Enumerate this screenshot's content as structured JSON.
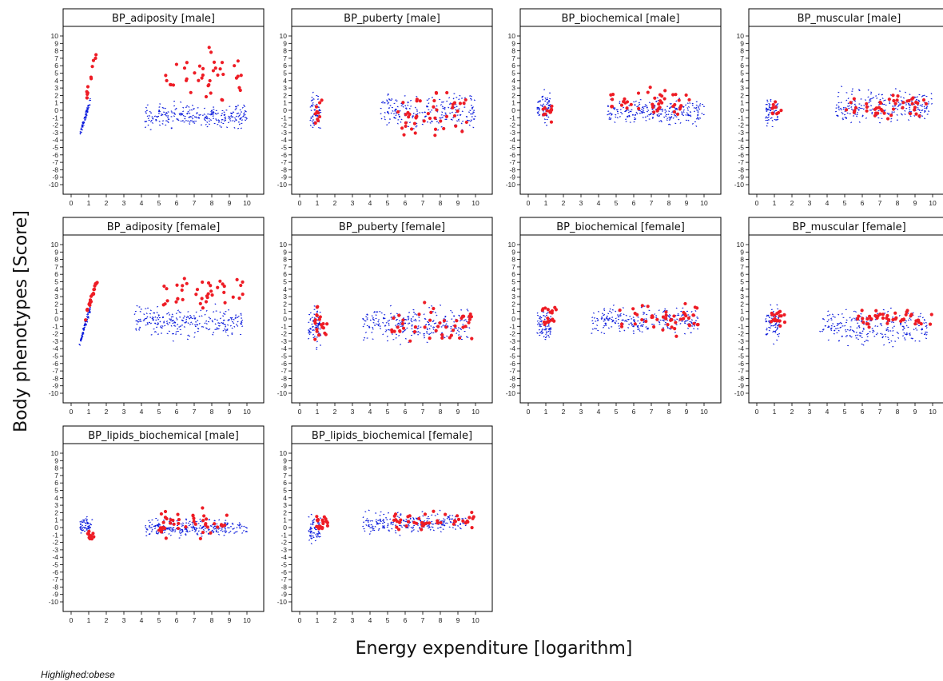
{
  "figure": {
    "ylabel": "Body phenotypes [Score]",
    "xlabel": "Energy expenditure [logarithm]",
    "footnote": "Highlighed:obese"
  },
  "colors": {
    "highlight": "#ee1c25",
    "base": "#0a1adc",
    "axis": "#000000"
  },
  "chart_data": [
    {
      "type": "scatter",
      "title": "BP_adiposity [male]",
      "xlim": [
        0,
        10
      ],
      "ylim": [
        -10,
        10
      ],
      "clusters": [
        {
          "group": "base",
          "x": [
            0.5,
            1.1
          ],
          "y": [
            -3.3,
            1.5
          ],
          "n": 80,
          "trend": "rising"
        },
        {
          "group": "base",
          "x": [
            4.2,
            10
          ],
          "y": [
            -3.0,
            1.5
          ],
          "n": 260
        },
        {
          "group": "highlight",
          "x": [
            0.85,
            1.4
          ],
          "y": [
            1.5,
            7.7
          ],
          "n": 12,
          "trend": "rising"
        },
        {
          "group": "highlight",
          "x": [
            5.3,
            9.8
          ],
          "y": [
            0,
            9.5
          ],
          "n": 40
        }
      ]
    },
    {
      "type": "scatter",
      "title": "BP_puberty [male]",
      "xlim": [
        0,
        10
      ],
      "ylim": [
        -10,
        10
      ],
      "clusters": [
        {
          "group": "base",
          "x": [
            0.6,
            1.2
          ],
          "y": [
            -3.7,
            3.3
          ],
          "n": 60
        },
        {
          "group": "base",
          "x": [
            4.6,
            10
          ],
          "y": [
            -3.5,
            3.0
          ],
          "n": 230
        },
        {
          "group": "highlight",
          "x": [
            0.8,
            1.3
          ],
          "y": [
            -3.2,
            2.4
          ],
          "n": 10
        },
        {
          "group": "highlight",
          "x": [
            5.5,
            9.5
          ],
          "y": [
            -5.0,
            3.5
          ],
          "n": 45
        }
      ]
    },
    {
      "type": "scatter",
      "title": "BP_biochemical [male]",
      "xlim": [
        0,
        10
      ],
      "ylim": [
        -10,
        10
      ],
      "clusters": [
        {
          "group": "base",
          "x": [
            0.5,
            1.3
          ],
          "y": [
            -2.3,
            3.2
          ],
          "n": 70
        },
        {
          "group": "base",
          "x": [
            4.5,
            10
          ],
          "y": [
            -2.5,
            2.3
          ],
          "n": 240
        },
        {
          "group": "highlight",
          "x": [
            0.8,
            1.4
          ],
          "y": [
            -2.0,
            1.8
          ],
          "n": 12
        },
        {
          "group": "highlight",
          "x": [
            4.6,
            9.5
          ],
          "y": [
            -1.5,
            3.6
          ],
          "n": 45
        }
      ]
    },
    {
      "type": "scatter",
      "title": "BP_muscular [male]",
      "xlim": [
        0,
        10
      ],
      "ylim": [
        -10,
        10
      ],
      "clusters": [
        {
          "group": "base",
          "x": [
            0.5,
            1.2
          ],
          "y": [
            -2.8,
            2.5
          ],
          "n": 60
        },
        {
          "group": "base",
          "x": [
            4.5,
            10
          ],
          "y": [
            -2.3,
            3.5
          ],
          "n": 240
        },
        {
          "group": "highlight",
          "x": [
            0.8,
            1.4
          ],
          "y": [
            -1.3,
            2.0
          ],
          "n": 10
        },
        {
          "group": "highlight",
          "x": [
            5.0,
            9.7
          ],
          "y": [
            -2.0,
            3.4
          ],
          "n": 45
        }
      ]
    },
    {
      "type": "scatter",
      "title": "BP_adiposity [female]",
      "xlim": [
        0,
        10
      ],
      "ylim": [
        -10,
        10
      ],
      "clusters": [
        {
          "group": "base",
          "x": [
            0.5,
            1.1
          ],
          "y": [
            -3.2,
            1.5
          ],
          "n": 90,
          "trend": "rising"
        },
        {
          "group": "base",
          "x": [
            3.6,
            9.8
          ],
          "y": [
            -3.2,
            2.3
          ],
          "n": 260
        },
        {
          "group": "highlight",
          "x": [
            0.8,
            1.5
          ],
          "y": [
            0,
            5.6
          ],
          "n": 22,
          "trend": "rising"
        },
        {
          "group": "highlight",
          "x": [
            5.2,
            9.9
          ],
          "y": [
            0,
            7.0
          ],
          "n": 40
        }
      ]
    },
    {
      "type": "scatter",
      "title": "BP_puberty [female]",
      "xlim": [
        0,
        10
      ],
      "ylim": [
        -10,
        10
      ],
      "clusters": [
        {
          "group": "base",
          "x": [
            0.5,
            1.2
          ],
          "y": [
            -4.6,
            2.6
          ],
          "n": 80
        },
        {
          "group": "base",
          "x": [
            3.6,
            9.7
          ],
          "y": [
            -4.0,
            2.5
          ],
          "n": 260
        },
        {
          "group": "highlight",
          "x": [
            0.8,
            1.6
          ],
          "y": [
            -3.5,
            2.8
          ],
          "n": 20
        },
        {
          "group": "highlight",
          "x": [
            5.2,
            9.9
          ],
          "y": [
            -3.9,
            2.6
          ],
          "n": 45
        }
      ]
    },
    {
      "type": "scatter",
      "title": "BP_biochemical [female]",
      "xlim": [
        0,
        10
      ],
      "ylim": [
        -10,
        10
      ],
      "clusters": [
        {
          "group": "base",
          "x": [
            0.5,
            1.3
          ],
          "y": [
            -3.6,
            2.0
          ],
          "n": 80
        },
        {
          "group": "base",
          "x": [
            3.6,
            9.7
          ],
          "y": [
            -2.8,
            2.5
          ],
          "n": 250
        },
        {
          "group": "highlight",
          "x": [
            0.8,
            1.6
          ],
          "y": [
            -2.0,
            2.4
          ],
          "n": 20
        },
        {
          "group": "highlight",
          "x": [
            5.2,
            9.8
          ],
          "y": [
            -2.5,
            2.7
          ],
          "n": 45
        }
      ]
    },
    {
      "type": "scatter",
      "title": "BP_muscular [female]",
      "xlim": [
        0,
        10
      ],
      "ylim": [
        -10,
        10
      ],
      "clusters": [
        {
          "group": "base",
          "x": [
            0.5,
            1.3
          ],
          "y": [
            -3.6,
            2.4
          ],
          "n": 80
        },
        {
          "group": "base",
          "x": [
            3.6,
            9.7
          ],
          "y": [
            -4.2,
            2.2
          ],
          "n": 250
        },
        {
          "group": "highlight",
          "x": [
            0.8,
            1.6
          ],
          "y": [
            -1.8,
            1.8
          ],
          "n": 20
        },
        {
          "group": "highlight",
          "x": [
            5.5,
            10
          ],
          "y": [
            -1.8,
            2.0
          ],
          "n": 45
        }
      ]
    },
    {
      "type": "scatter",
      "title": "BP_lipids_biochemical [male]",
      "xlim": [
        0,
        10
      ],
      "ylim": [
        -10,
        10
      ],
      "clusters": [
        {
          "group": "base",
          "x": [
            0.5,
            1.2
          ],
          "y": [
            -1.3,
            1.7
          ],
          "n": 60
        },
        {
          "group": "base",
          "x": [
            4.2,
            10
          ],
          "y": [
            -1.7,
            1.6
          ],
          "n": 260
        },
        {
          "group": "highlight",
          "x": [
            0.9,
            1.3
          ],
          "y": [
            -2.3,
            0.3
          ],
          "n": 10
        },
        {
          "group": "highlight",
          "x": [
            5.0,
            9.0
          ],
          "y": [
            -2.2,
            3.2
          ],
          "n": 45
        }
      ]
    },
    {
      "type": "scatter",
      "title": "BP_lipids_biochemical [female]",
      "xlim": [
        0,
        10
      ],
      "ylim": [
        -10,
        10
      ],
      "clusters": [
        {
          "group": "base",
          "x": [
            0.5,
            1.2
          ],
          "y": [
            -2.8,
            2.4
          ],
          "n": 70
        },
        {
          "group": "base",
          "x": [
            3.6,
            9.5
          ],
          "y": [
            -1.2,
            2.5
          ],
          "n": 260
        },
        {
          "group": "highlight",
          "x": [
            0.8,
            1.6
          ],
          "y": [
            -1.0,
            2.0
          ],
          "n": 20
        },
        {
          "group": "highlight",
          "x": [
            5.2,
            9.9
          ],
          "y": [
            -0.7,
            2.6
          ],
          "n": 45
        }
      ]
    }
  ]
}
